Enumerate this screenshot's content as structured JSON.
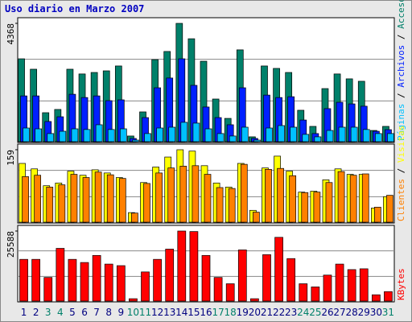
{
  "chart_data": {
    "type": "bar",
    "title": "Uso diario en Marzo 2007",
    "categories": [
      "1",
      "2",
      "3",
      "4",
      "5",
      "6",
      "7",
      "8",
      "9",
      "10",
      "11",
      "12",
      "13",
      "14",
      "15",
      "16",
      "17",
      "18",
      "19",
      "20",
      "21",
      "22",
      "23",
      "24",
      "25",
      "26",
      "27",
      "28",
      "29",
      "30",
      "31"
    ],
    "category_colors": [
      "#000080",
      "#000080",
      "#00806a",
      "#00806a",
      "#000080",
      "#000080",
      "#000080",
      "#000080",
      "#000080",
      "#00806a",
      "#00806a",
      "#000080",
      "#000080",
      "#000080",
      "#000080",
      "#000080",
      "#00806a",
      "#00806a",
      "#000080",
      "#000080",
      "#000080",
      "#000080",
      "#000080",
      "#00806a",
      "#00806a",
      "#000080",
      "#000080",
      "#000080",
      "#000080",
      "#000080",
      "#00806a"
    ],
    "panels": [
      {
        "ylim": [
          0,
          4368
        ],
        "yticks": [
          4368
        ],
        "series": [
          {
            "name": "Accesos",
            "color": "#00806a",
            "values": [
              3060,
              2675,
              1070,
              1190,
              2675,
              2500,
              2555,
              2615,
              2795,
              210,
              1100,
              3030,
              3330,
              4368,
              3800,
              2970,
              1575,
              860,
              3390,
              180,
              2795,
              2705,
              2555,
              1160,
              565,
              1960,
              2500,
              2320,
              2230,
              415,
              565
            ]
          },
          {
            "name": "Archivos",
            "color": "#0020ff",
            "values": [
              1690,
              1690,
              745,
              920,
              1750,
              1630,
              1690,
              1515,
              1545,
              120,
              890,
              1990,
              2350,
              3060,
              2080,
              1280,
              890,
              625,
              1990,
              120,
              1720,
              1630,
              1660,
              800,
              300,
              1220,
              1455,
              1395,
              1310,
              385,
              445
            ]
          },
          {
            "name": "Páginas",
            "color": "#00c0ff",
            "values": [
              505,
              475,
              300,
              385,
              475,
              450,
              625,
              450,
              475,
              60,
              300,
              505,
              535,
              715,
              685,
              475,
              300,
              210,
              535,
              60,
              505,
              595,
              535,
              270,
              180,
              415,
              535,
              535,
              450,
              300,
              300
            ]
          }
        ]
      },
      {
        "ylim": [
          0,
          159
        ],
        "yticks": [
          159
        ],
        "series": [
          {
            "name": "Visitas",
            "color": "#ffff00",
            "values": [
              129,
              117,
              80,
              86,
              112,
              103,
              115,
              108,
              98,
              21,
              87,
              121,
              143,
              159,
              156,
              124,
              86,
              77,
              129,
              26,
              119,
              145,
              112,
              66,
              68,
              93,
              117,
              105,
              105,
              31,
              56
            ]
          },
          {
            "name": "Clientes",
            "color": "#ff8000",
            "values": [
              100,
              103,
              77,
              82,
              105,
              98,
              110,
              104,
              96,
              20,
              85,
              108,
              119,
              123,
              124,
              105,
              76,
              74,
              127,
              22,
              116,
              118,
              102,
              65,
              66,
              87,
              111,
              103,
              106,
              33,
              59
            ]
          }
        ]
      },
      {
        "ylim": [
          0,
          25588
        ],
        "yticks": [
          25588
        ],
        "series": [
          {
            "name": "KBytes",
            "color": "#ff0000",
            "values": [
              15240,
              15240,
              8625,
              19260,
              15240,
              14090,
              16675,
              13510,
              12940,
              860,
              10640,
              15240,
              18980,
              25588,
              25400,
              16675,
              8625,
              6325,
              18690,
              860,
              16960,
              23290,
              15525,
              6325,
              5175,
              9490,
              13510,
              11500,
              11790,
              2300,
              3450
            ]
          }
        ]
      }
    ]
  }
}
